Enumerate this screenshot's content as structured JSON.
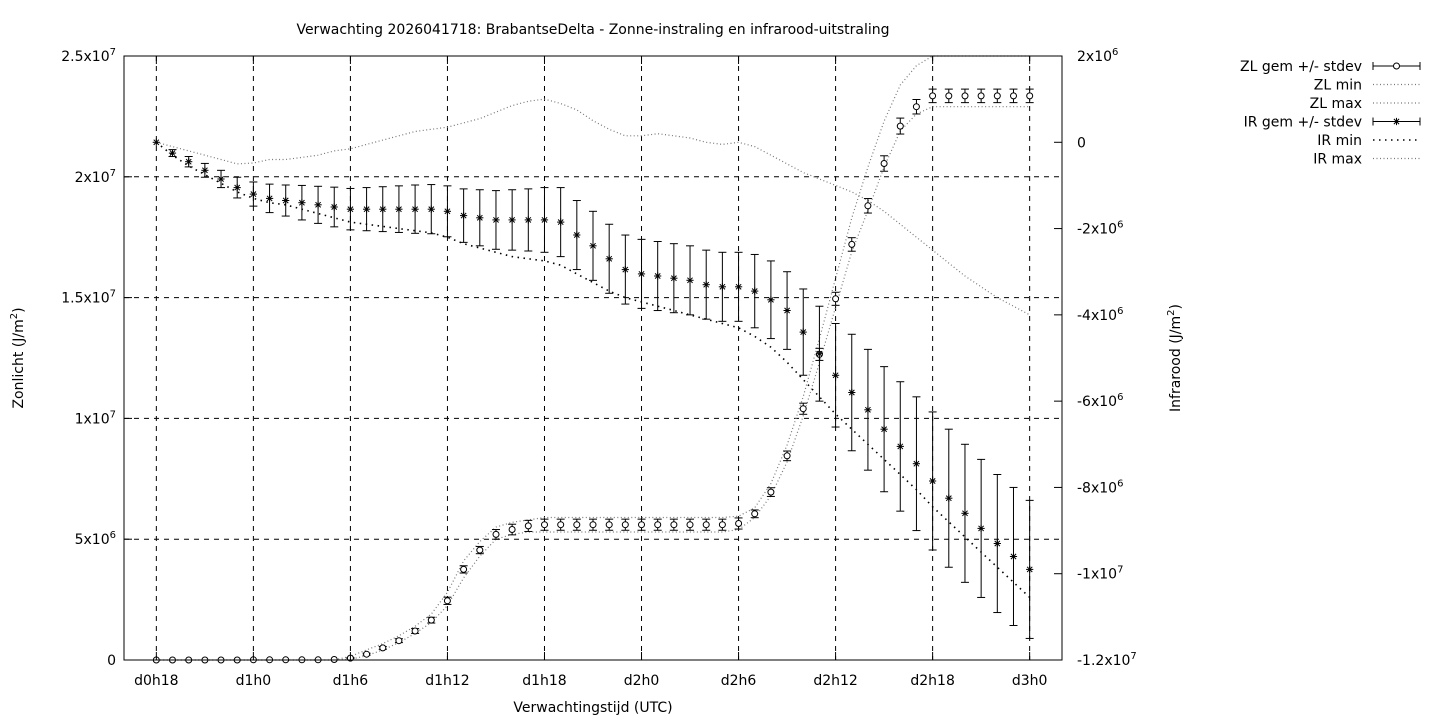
{
  "chart_data": {
    "type": "line",
    "title": "Verwachting 2026041718: BrabantseDelta - Zonne-instraling en infrarood-uitstraling",
    "xlabel": "Verwachtingstijd (UTC)",
    "ylabel_left": {
      "base": "Zonlicht (J/m",
      "sup": "2",
      "tail": ")"
    },
    "ylabel_right": {
      "base": "Infrarood (J/m",
      "sup": "2",
      "tail": ")"
    },
    "x_unit": "hours since d0h0",
    "xlim": [
      16,
      74
    ],
    "ylim_left": [
      0,
      25000000
    ],
    "ylim_right": [
      -12000000,
      2000000
    ],
    "grid": true,
    "legend_position": "outside-top-right",
    "x_ticks": [
      {
        "value": 18,
        "label": "d0h18"
      },
      {
        "value": 24,
        "label": "d1h0"
      },
      {
        "value": 30,
        "label": "d1h6"
      },
      {
        "value": 36,
        "label": "d1h12"
      },
      {
        "value": 42,
        "label": "d1h18"
      },
      {
        "value": 48,
        "label": "d2h0"
      },
      {
        "value": 54,
        "label": "d2h6"
      },
      {
        "value": 60,
        "label": "d2h12"
      },
      {
        "value": 66,
        "label": "d2h18"
      },
      {
        "value": 72,
        "label": "d3h0"
      }
    ],
    "y_ticks_left": [
      {
        "value": 0,
        "label": "0"
      },
      {
        "value": 5000000,
        "label": "5x10",
        "sup": "6"
      },
      {
        "value": 10000000,
        "label": "1x10",
        "sup": "7"
      },
      {
        "value": 15000000,
        "label": "1.5x10",
        "sup": "7"
      },
      {
        "value": 20000000,
        "label": "2x10",
        "sup": "7"
      },
      {
        "value": 25000000,
        "label": "2.5x10",
        "sup": "7"
      }
    ],
    "y_ticks_right": [
      {
        "value": 2000000,
        "label": "2x10",
        "sup": "6"
      },
      {
        "value": 0,
        "label": "0"
      },
      {
        "value": -2000000,
        "label": "-2x10",
        "sup": "6"
      },
      {
        "value": -4000000,
        "label": "-4x10",
        "sup": "6"
      },
      {
        "value": -6000000,
        "label": "-6x10",
        "sup": "6"
      },
      {
        "value": -8000000,
        "label": "-8x10",
        "sup": "6"
      },
      {
        "value": -10000000,
        "label": "-1x10",
        "sup": "7"
      },
      {
        "value": -12000000,
        "label": "-1.2x10",
        "sup": "7"
      }
    ],
    "x": [
      18,
      19,
      20,
      21,
      22,
      23,
      24,
      25,
      26,
      27,
      28,
      29,
      30,
      31,
      32,
      33,
      34,
      35,
      36,
      37,
      38,
      39,
      40,
      41,
      42,
      43,
      44,
      45,
      46,
      47,
      48,
      49,
      50,
      51,
      52,
      53,
      54,
      55,
      56,
      57,
      58,
      59,
      60,
      61,
      62,
      63,
      64,
      65,
      66,
      67,
      68,
      69,
      70,
      71,
      72
    ],
    "series": [
      {
        "name": "ZL gem +/- stdev",
        "axis": "left",
        "marker": "circle",
        "values": [
          0,
          0,
          0,
          0,
          0,
          0,
          10000,
          10000,
          10000,
          10000,
          10000,
          20000,
          80000,
          240000,
          500000,
          800000,
          1200000,
          1650000,
          2450000,
          3750000,
          4550000,
          5200000,
          5400000,
          5550000,
          5600000,
          5600000,
          5600000,
          5600000,
          5600000,
          5600000,
          5600000,
          5600000,
          5600000,
          5600000,
          5600000,
          5600000,
          5650000,
          6050000,
          6950000,
          8450000,
          10400000,
          12650000,
          14950000,
          17200000,
          18800000,
          20550000,
          22100000,
          22900000,
          23350000,
          23350000,
          23350000,
          23350000,
          23350000,
          23350000,
          23350000
        ],
        "stdev": [
          0,
          0,
          0,
          0,
          0,
          0,
          0,
          0,
          0,
          0,
          0,
          0,
          20000,
          40000,
          60000,
          80000,
          100000,
          120000,
          150000,
          150000,
          150000,
          200000,
          220000,
          230000,
          230000,
          230000,
          230000,
          230000,
          230000,
          230000,
          230000,
          230000,
          230000,
          230000,
          230000,
          230000,
          230000,
          160000,
          180000,
          200000,
          230000,
          250000,
          270000,
          280000,
          300000,
          320000,
          330000,
          300000,
          280000,
          280000,
          280000,
          280000,
          280000,
          280000,
          280000
        ]
      },
      {
        "name": "ZL min",
        "axis": "left",
        "values": [
          0,
          0,
          0,
          0,
          0,
          0,
          0,
          0,
          0,
          0,
          0,
          0,
          30000,
          180000,
          420000,
          720000,
          1100000,
          1550000,
          2250000,
          3400000,
          4300000,
          5000000,
          5200000,
          5300000,
          5300000,
          5300000,
          5300000,
          5300000,
          5300000,
          5300000,
          5300000,
          5300000,
          5300000,
          5300000,
          5300000,
          5300000,
          5400000,
          5900000,
          6800000,
          8200000,
          10100000,
          12300000,
          14600000,
          16900000,
          18600000,
          20400000,
          21900000,
          22600000,
          22900000,
          22900000,
          22900000,
          22900000,
          22900000,
          22900000,
          22900000
        ]
      },
      {
        "name": "ZL max",
        "axis": "left",
        "values": [
          0,
          0,
          0,
          0,
          0,
          0,
          0,
          0,
          0,
          0,
          0,
          0,
          150000,
          420000,
          680000,
          1000000,
          1400000,
          1900000,
          2800000,
          4100000,
          4900000,
          5500000,
          5700000,
          5800000,
          5900000,
          5900000,
          5900000,
          5900000,
          5900000,
          5900000,
          5900000,
          5900000,
          5900000,
          5900000,
          5900000,
          5900000,
          5950000,
          6300000,
          7300000,
          8900000,
          10900000,
          13300000,
          15800000,
          18300000,
          20400000,
          22300000,
          23800000,
          24600000,
          25000000,
          25000000,
          25000000,
          25000000,
          25000000,
          25000000,
          25000000
        ]
      },
      {
        "name": "IR gem +/- stdev",
        "axis": "right",
        "marker": "asterisk",
        "values": [
          0,
          -250000,
          -450000,
          -650000,
          -850000,
          -1050000,
          -1200000,
          -1300000,
          -1350000,
          -1400000,
          -1450000,
          -1500000,
          -1550000,
          -1550000,
          -1550000,
          -1550000,
          -1550000,
          -1550000,
          -1600000,
          -1700000,
          -1750000,
          -1800000,
          -1800000,
          -1800000,
          -1800000,
          -1850000,
          -2150000,
          -2400000,
          -2700000,
          -2950000,
          -3050000,
          -3100000,
          -3150000,
          -3200000,
          -3300000,
          -3350000,
          -3350000,
          -3450000,
          -3650000,
          -3900000,
          -4400000,
          -4900000,
          -5400000,
          -5800000,
          -6200000,
          -6650000,
          -7050000,
          -7450000,
          -7850000,
          -8250000,
          -8600000,
          -8950000,
          -9300000,
          -9600000,
          -9900000
        ],
        "stdev": [
          0,
          80000,
          120000,
          160000,
          200000,
          240000,
          280000,
          330000,
          360000,
          400000,
          430000,
          460000,
          480000,
          500000,
          520000,
          540000,
          560000,
          570000,
          590000,
          620000,
          650000,
          680000,
          700000,
          720000,
          750000,
          800000,
          800000,
          800000,
          800000,
          800000,
          800000,
          800000,
          800000,
          800000,
          800000,
          800000,
          800000,
          850000,
          900000,
          900000,
          1000000,
          1100000,
          1200000,
          1350000,
          1400000,
          1450000,
          1500000,
          1550000,
          1600000,
          1600000,
          1600000,
          1600000,
          1600000,
          1600000,
          1600000
        ]
      },
      {
        "name": "IR min",
        "axis": "right",
        "values": [
          0,
          -300000,
          -550000,
          -750000,
          -950000,
          -1150000,
          -1300000,
          -1400000,
          -1450000,
          -1550000,
          -1650000,
          -1750000,
          -1850000,
          -1900000,
          -1950000,
          -2000000,
          -2050000,
          -2100000,
          -2200000,
          -2350000,
          -2450000,
          -2550000,
          -2650000,
          -2700000,
          -2750000,
          -2850000,
          -3050000,
          -3250000,
          -3450000,
          -3600000,
          -3700000,
          -3800000,
          -3900000,
          -4000000,
          -4100000,
          -4200000,
          -4300000,
          -4500000,
          -4750000,
          -5100000,
          -5500000,
          -5900000,
          -6300000,
          -6650000,
          -7000000,
          -7350000,
          -7700000,
          -8050000,
          -8450000,
          -8800000,
          -9150000,
          -9500000,
          -9850000,
          -10200000,
          -10550000
        ]
      },
      {
        "name": "IR max",
        "axis": "right",
        "values": [
          0,
          -100000,
          -200000,
          -300000,
          -400000,
          -500000,
          -480000,
          -400000,
          -400000,
          -350000,
          -300000,
          -200000,
          -150000,
          -50000,
          50000,
          150000,
          250000,
          300000,
          350000,
          450000,
          550000,
          700000,
          850000,
          950000,
          1000000,
          900000,
          750000,
          500000,
          300000,
          150000,
          150000,
          200000,
          150000,
          100000,
          0,
          -50000,
          0,
          -100000,
          -300000,
          -500000,
          -700000,
          -850000,
          -1000000,
          -1150000,
          -1350000,
          -1600000,
          -1900000,
          -2200000,
          -2500000,
          -2800000,
          -3100000,
          -3350000,
          -3600000,
          -3800000,
          -4000000
        ]
      }
    ]
  }
}
